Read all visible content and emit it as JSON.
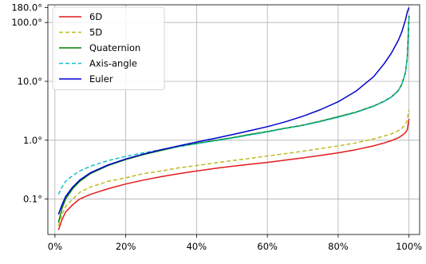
{
  "chart_data": {
    "type": "line",
    "title": "",
    "xlabel": "",
    "ylabel": "",
    "x_scale": "linear",
    "y_scale": "log",
    "xlim": [
      -0.02,
      1.03
    ],
    "ylim": [
      0.025,
      200
    ],
    "grid": true,
    "legend_position": "top-left",
    "x_ticks": [
      {
        "value": 0.0,
        "label": "0%"
      },
      {
        "value": 0.2,
        "label": "20%"
      },
      {
        "value": 0.4,
        "label": "40%"
      },
      {
        "value": 0.6,
        "label": "60%"
      },
      {
        "value": 0.8,
        "label": "80%"
      },
      {
        "value": 1.0,
        "label": "100%"
      }
    ],
    "y_ticks": [
      {
        "value": 0.1,
        "label": "0.1°"
      },
      {
        "value": 1,
        "label": "1.0°"
      },
      {
        "value": 10,
        "label": "10.0°"
      },
      {
        "value": 100,
        "label": "100.0°"
      },
      {
        "value": 180,
        "label": "180.0°"
      }
    ],
    "series": [
      {
        "name": "6D",
        "color": "#e41a1c",
        "dash": "solid",
        "x": [
          0.01,
          0.02,
          0.03,
          0.05,
          0.07,
          0.1,
          0.15,
          0.2,
          0.25,
          0.3,
          0.35,
          0.4,
          0.45,
          0.5,
          0.55,
          0.6,
          0.65,
          0.7,
          0.75,
          0.8,
          0.85,
          0.9,
          0.93,
          0.95,
          0.97,
          0.98,
          0.99,
          0.995,
          1.0
        ],
        "y": [
          0.03,
          0.045,
          0.06,
          0.08,
          0.1,
          0.12,
          0.15,
          0.18,
          0.21,
          0.24,
          0.27,
          0.3,
          0.33,
          0.36,
          0.39,
          0.42,
          0.46,
          0.5,
          0.55,
          0.61,
          0.69,
          0.8,
          0.9,
          0.98,
          1.1,
          1.2,
          1.35,
          1.5,
          2.3
        ]
      },
      {
        "name": "5D",
        "color": "#bcbd22",
        "dash": "dashed",
        "x": [
          0.01,
          0.02,
          0.03,
          0.05,
          0.07,
          0.1,
          0.15,
          0.2,
          0.25,
          0.3,
          0.35,
          0.4,
          0.45,
          0.5,
          0.55,
          0.6,
          0.65,
          0.7,
          0.75,
          0.8,
          0.85,
          0.9,
          0.93,
          0.95,
          0.97,
          0.98,
          0.99,
          0.995,
          1.0
        ],
        "y": [
          0.035,
          0.055,
          0.075,
          0.1,
          0.13,
          0.16,
          0.2,
          0.23,
          0.27,
          0.3,
          0.34,
          0.37,
          0.41,
          0.45,
          0.49,
          0.54,
          0.59,
          0.65,
          0.72,
          0.8,
          0.9,
          1.05,
          1.18,
          1.28,
          1.45,
          1.6,
          1.85,
          2.2,
          3.3
        ]
      },
      {
        "name": "Quaternion",
        "color": "#008000",
        "dash": "solid",
        "x": [
          0.01,
          0.02,
          0.03,
          0.05,
          0.07,
          0.1,
          0.15,
          0.2,
          0.25,
          0.3,
          0.35,
          0.4,
          0.45,
          0.5,
          0.55,
          0.6,
          0.65,
          0.7,
          0.75,
          0.8,
          0.85,
          0.9,
          0.93,
          0.95,
          0.97,
          0.98,
          0.99,
          0.995,
          1.0
        ],
        "y": [
          0.04,
          0.07,
          0.1,
          0.15,
          0.2,
          0.27,
          0.37,
          0.47,
          0.57,
          0.67,
          0.78,
          0.88,
          0.99,
          1.1,
          1.25,
          1.4,
          1.6,
          1.8,
          2.1,
          2.5,
          3.0,
          3.8,
          4.6,
          5.4,
          7.0,
          9.0,
          14.0,
          25.0,
          130.0
        ]
      },
      {
        "name": "Axis-angle",
        "color": "#17becf",
        "dash": "dashed",
        "x": [
          0.01,
          0.02,
          0.03,
          0.05,
          0.07,
          0.1,
          0.15,
          0.2,
          0.25,
          0.3,
          0.35,
          0.4,
          0.45,
          0.5,
          0.55,
          0.6,
          0.65,
          0.7,
          0.75,
          0.8,
          0.85,
          0.9,
          0.93,
          0.95,
          0.97,
          0.98,
          0.99,
          0.995,
          1.0
        ],
        "y": [
          0.12,
          0.16,
          0.2,
          0.25,
          0.3,
          0.36,
          0.45,
          0.53,
          0.61,
          0.69,
          0.78,
          0.87,
          0.97,
          1.08,
          1.22,
          1.38,
          1.57,
          1.78,
          2.06,
          2.45,
          2.95,
          3.75,
          4.55,
          5.35,
          6.9,
          8.9,
          13.8,
          24.0,
          125.0
        ]
      },
      {
        "name": "Euler",
        "color": "#0000cd",
        "dash": "solid",
        "x": [
          0.01,
          0.02,
          0.03,
          0.05,
          0.07,
          0.1,
          0.15,
          0.2,
          0.25,
          0.3,
          0.35,
          0.4,
          0.45,
          0.5,
          0.55,
          0.6,
          0.65,
          0.7,
          0.75,
          0.8,
          0.85,
          0.9,
          0.93,
          0.95,
          0.97,
          0.98,
          0.99,
          0.995,
          1.0
        ],
        "y": [
          0.055,
          0.08,
          0.11,
          0.16,
          0.21,
          0.28,
          0.38,
          0.48,
          0.58,
          0.69,
          0.8,
          0.93,
          1.07,
          1.24,
          1.45,
          1.7,
          2.05,
          2.55,
          3.3,
          4.5,
          6.8,
          12.0,
          20.0,
          30.0,
          50.0,
          70.0,
          110.0,
          150.0,
          180.0
        ]
      }
    ]
  }
}
